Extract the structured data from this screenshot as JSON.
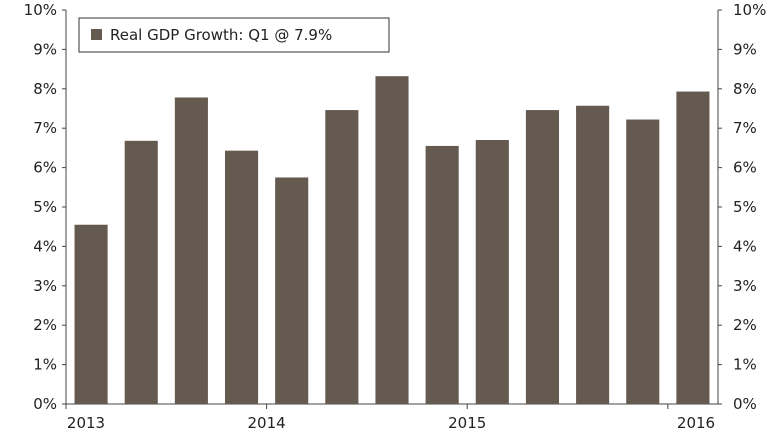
{
  "chart_data": {
    "type": "bar",
    "legend": {
      "label": "Real GDP Growth: Q1 @ 7.9%",
      "position": "top-left",
      "swatch_color": "#655a4f"
    },
    "categories": [
      "2013 Q1",
      "2013 Q2",
      "2013 Q3",
      "2013 Q4",
      "2014 Q1",
      "2014 Q2",
      "2014 Q3",
      "2014 Q4",
      "2015 Q1",
      "2015 Q2",
      "2015 Q3",
      "2015 Q4",
      "2016 Q1"
    ],
    "series": [
      {
        "name": "Real GDP Growth",
        "color": "#655a4f",
        "values": [
          4.55,
          6.68,
          7.78,
          6.43,
          5.75,
          7.46,
          8.32,
          6.55,
          6.7,
          7.46,
          7.57,
          7.22,
          7.93
        ]
      }
    ],
    "x_tick_labels": [
      "2013",
      "2014",
      "2015",
      "2016"
    ],
    "y_tick_labels": [
      "0%",
      "1%",
      "2%",
      "3%",
      "4%",
      "5%",
      "6%",
      "7%",
      "8%",
      "9%",
      "10%"
    ],
    "ylim": [
      0,
      10
    ],
    "grid": false,
    "secondary_y_axis": true
  }
}
